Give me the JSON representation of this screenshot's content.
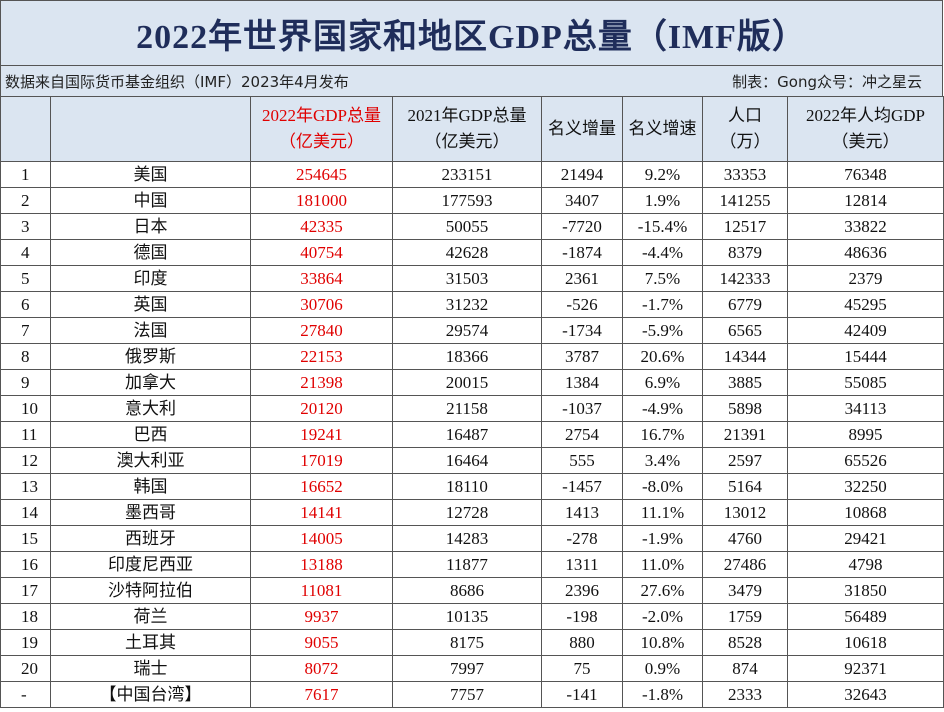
{
  "header": {
    "title": "2022年世界国家和地区GDP总量（IMF版）",
    "source": "数据来自国际货币基金组织（IMF）2023年4月发布",
    "credit": "制表：Gong众号：冲之星云"
  },
  "table": {
    "columns": [
      {
        "lines": [
          "2022年GDP总量",
          "（亿美元）"
        ]
      },
      {
        "lines": [
          "2021年GDP总量",
          "（亿美元）"
        ]
      },
      {
        "lines": [
          "名义增量"
        ]
      },
      {
        "lines": [
          "名义增速"
        ]
      },
      {
        "lines": [
          "人口",
          "（万）"
        ]
      },
      {
        "lines": [
          "2022年人均GDP",
          "（美元）"
        ]
      }
    ],
    "rows": [
      [
        1,
        "美国",
        254645,
        233151,
        21494,
        "9.2%",
        33353,
        76348
      ],
      [
        2,
        "中国",
        181000,
        177593,
        3407,
        "1.9%",
        141255,
        12814
      ],
      [
        3,
        "日本",
        42335,
        50055,
        -7720,
        "-15.4%",
        12517,
        33822
      ],
      [
        4,
        "德国",
        40754,
        42628,
        -1874,
        "-4.4%",
        8379,
        48636
      ],
      [
        5,
        "印度",
        33864,
        31503,
        2361,
        "7.5%",
        142333,
        2379
      ],
      [
        6,
        "英国",
        30706,
        31232,
        -526,
        "-1.7%",
        6779,
        45295
      ],
      [
        7,
        "法国",
        27840,
        29574,
        -1734,
        "-5.9%",
        6565,
        42409
      ],
      [
        8,
        "俄罗斯",
        22153,
        18366,
        3787,
        "20.6%",
        14344,
        15444
      ],
      [
        9,
        "加拿大",
        21398,
        20015,
        1384,
        "6.9%",
        3885,
        55085
      ],
      [
        10,
        "意大利",
        20120,
        21158,
        -1037,
        "-4.9%",
        5898,
        34113
      ],
      [
        11,
        "巴西",
        19241,
        16487,
        2754,
        "16.7%",
        21391,
        8995
      ],
      [
        12,
        "澳大利亚",
        17019,
        16464,
        555,
        "3.4%",
        2597,
        65526
      ],
      [
        13,
        "韩国",
        16652,
        18110,
        -1457,
        "-8.0%",
        5164,
        32250
      ],
      [
        14,
        "墨西哥",
        14141,
        12728,
        1413,
        "11.1%",
        13012,
        10868
      ],
      [
        15,
        "西班牙",
        14005,
        14283,
        -278,
        "-1.9%",
        4760,
        29421
      ],
      [
        16,
        "印度尼西亚",
        13188,
        11877,
        1311,
        "11.0%",
        27486,
        4798
      ],
      [
        17,
        "沙特阿拉伯",
        11081,
        8686,
        2396,
        "27.6%",
        3479,
        31850
      ],
      [
        18,
        "荷兰",
        9937,
        10135,
        -198,
        "-2.0%",
        1759,
        56489
      ],
      [
        19,
        "土耳其",
        9055,
        8175,
        880,
        "10.8%",
        8528,
        10618
      ],
      [
        20,
        "瑞士",
        8072,
        7997,
        75,
        "0.9%",
        874,
        92371
      ],
      [
        "-",
        "【中国台湾】",
        7617,
        7757,
        -141,
        "-1.8%",
        2333,
        32643
      ]
    ]
  }
}
